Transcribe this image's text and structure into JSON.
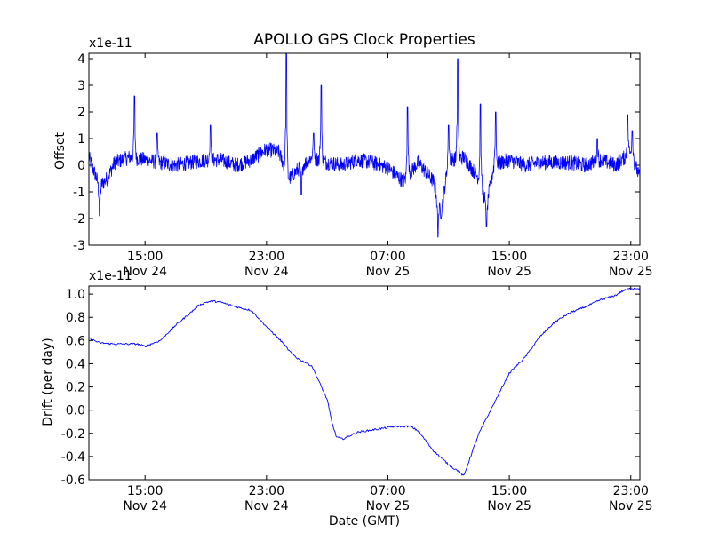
{
  "title": "APOLLO GPS Clock Properties",
  "colors": {
    "line": "#0000ff",
    "axes": "#000000",
    "background": "#ffffff"
  },
  "chart_data": [
    {
      "type": "line",
      "ylabel": "Offset",
      "y_multiplier": "x1e-11",
      "ylim": [
        -3,
        4.2
      ],
      "y_ticks": [
        "4",
        "3",
        "2",
        "1",
        "0",
        "-1",
        "-2",
        "-3"
      ],
      "xlim": [
        11.3,
        47.6
      ],
      "x_ticks": [
        {
          "time": "15:00",
          "date": "Nov 24",
          "h": 15
        },
        {
          "time": "23:00",
          "date": "Nov 24",
          "h": 23
        },
        {
          "time": "07:00",
          "date": "Nov 25",
          "h": 31
        },
        {
          "time": "15:00",
          "date": "Nov 25",
          "h": 39
        },
        {
          "time": "23:00",
          "date": "Nov 25",
          "h": 47
        }
      ],
      "noise_amplitude": 0.28,
      "series": [
        {
          "x": [
            11.3,
            12.0,
            12.5,
            13.0,
            14.0,
            15.0,
            16.0,
            17.0,
            18.0,
            19.0,
            20.0,
            21.0,
            22.0,
            23.0,
            23.8,
            24.5,
            25.0,
            26.0,
            27.0,
            28.0,
            29.0,
            30.0,
            31.0,
            32.0,
            33.0,
            34.0,
            34.5,
            35.0,
            36.0,
            37.0,
            37.5,
            38.0,
            39.0,
            40.0,
            41.0,
            42.0,
            43.0,
            44.0,
            45.0,
            46.0,
            47.0,
            47.6
          ],
          "y": [
            0.3,
            -0.8,
            -0.5,
            0.1,
            0.3,
            0.2,
            0.1,
            0.0,
            0.1,
            0.2,
            0.2,
            0.0,
            0.2,
            0.6,
            0.5,
            -0.5,
            -0.2,
            0.3,
            0.1,
            0.0,
            0.2,
            0.1,
            -0.1,
            -0.6,
            0.1,
            -0.6,
            -1.8,
            0.2,
            0.3,
            -0.5,
            -1.5,
            0.0,
            0.2,
            0.0,
            0.1,
            0.1,
            0.1,
            0.0,
            0.2,
            0.0,
            0.5,
            -0.5
          ]
        }
      ],
      "spikes": [
        {
          "x": 14.3,
          "y": 2.6
        },
        {
          "x": 15.8,
          "y": 1.2
        },
        {
          "x": 19.3,
          "y": 1.5
        },
        {
          "x": 24.3,
          "y": 4.2
        },
        {
          "x": 26.6,
          "y": 3.0
        },
        {
          "x": 26.1,
          "y": 1.2
        },
        {
          "x": 32.3,
          "y": 2.2
        },
        {
          "x": 34.3,
          "y": -2.7
        },
        {
          "x": 35.6,
          "y": 4.0
        },
        {
          "x": 35.0,
          "y": 1.5
        },
        {
          "x": 37.1,
          "y": 2.3
        },
        {
          "x": 37.5,
          "y": -2.3
        },
        {
          "x": 38.1,
          "y": 2.0
        },
        {
          "x": 44.8,
          "y": 1.0
        },
        {
          "x": 46.8,
          "y": 1.9
        },
        {
          "x": 47.1,
          "y": 1.3
        },
        {
          "x": 12.0,
          "y": -1.9
        },
        {
          "x": 25.3,
          "y": -1.1
        }
      ]
    },
    {
      "type": "line",
      "xlabel": "Date (GMT)",
      "ylabel": "Drift (per day)",
      "y_multiplier": "x1e-11",
      "ylim": [
        -0.6,
        1.07
      ],
      "y_ticks": [
        "1.0",
        "0.8",
        "0.6",
        "0.4",
        "0.2",
        "0.0",
        "-0.2",
        "-0.4",
        "-0.6"
      ],
      "xlim": [
        11.3,
        47.6
      ],
      "x_ticks": [
        {
          "time": "15:00",
          "date": "Nov 24",
          "h": 15
        },
        {
          "time": "23:00",
          "date": "Nov 24",
          "h": 23
        },
        {
          "time": "07:00",
          "date": "Nov 25",
          "h": 31
        },
        {
          "time": "15:00",
          "date": "Nov 25",
          "h": 39
        },
        {
          "time": "23:00",
          "date": "Nov 25",
          "h": 47
        }
      ],
      "noise_amplitude": 0.008,
      "series": [
        {
          "x": [
            11.3,
            12.0,
            13.0,
            14.0,
            14.5,
            15.0,
            16.0,
            17.0,
            18.0,
            18.5,
            19.0,
            19.5,
            20.0,
            21.0,
            22.0,
            23.0,
            24.0,
            24.5,
            25.0,
            26.0,
            27.0,
            27.3,
            27.6,
            28.0,
            29.0,
            30.0,
            31.0,
            31.5,
            32.0,
            32.5,
            33.0,
            34.0,
            35.0,
            35.3,
            35.6,
            36.0,
            36.5,
            37.0,
            38.0,
            39.0,
            40.0,
            41.0,
            42.0,
            43.0,
            44.0,
            45.0,
            46.0,
            46.5,
            47.0,
            47.6
          ],
          "y": [
            0.62,
            0.58,
            0.57,
            0.57,
            0.57,
            0.55,
            0.6,
            0.73,
            0.84,
            0.9,
            0.93,
            0.94,
            0.93,
            0.89,
            0.86,
            0.72,
            0.59,
            0.51,
            0.45,
            0.38,
            0.09,
            -0.1,
            -0.23,
            -0.25,
            -0.19,
            -0.17,
            -0.15,
            -0.14,
            -0.14,
            -0.14,
            -0.18,
            -0.35,
            -0.47,
            -0.5,
            -0.52,
            -0.57,
            -0.38,
            -0.2,
            0.06,
            0.32,
            0.45,
            0.63,
            0.76,
            0.84,
            0.89,
            0.95,
            0.99,
            1.03,
            1.05,
            1.05
          ]
        }
      ]
    }
  ]
}
